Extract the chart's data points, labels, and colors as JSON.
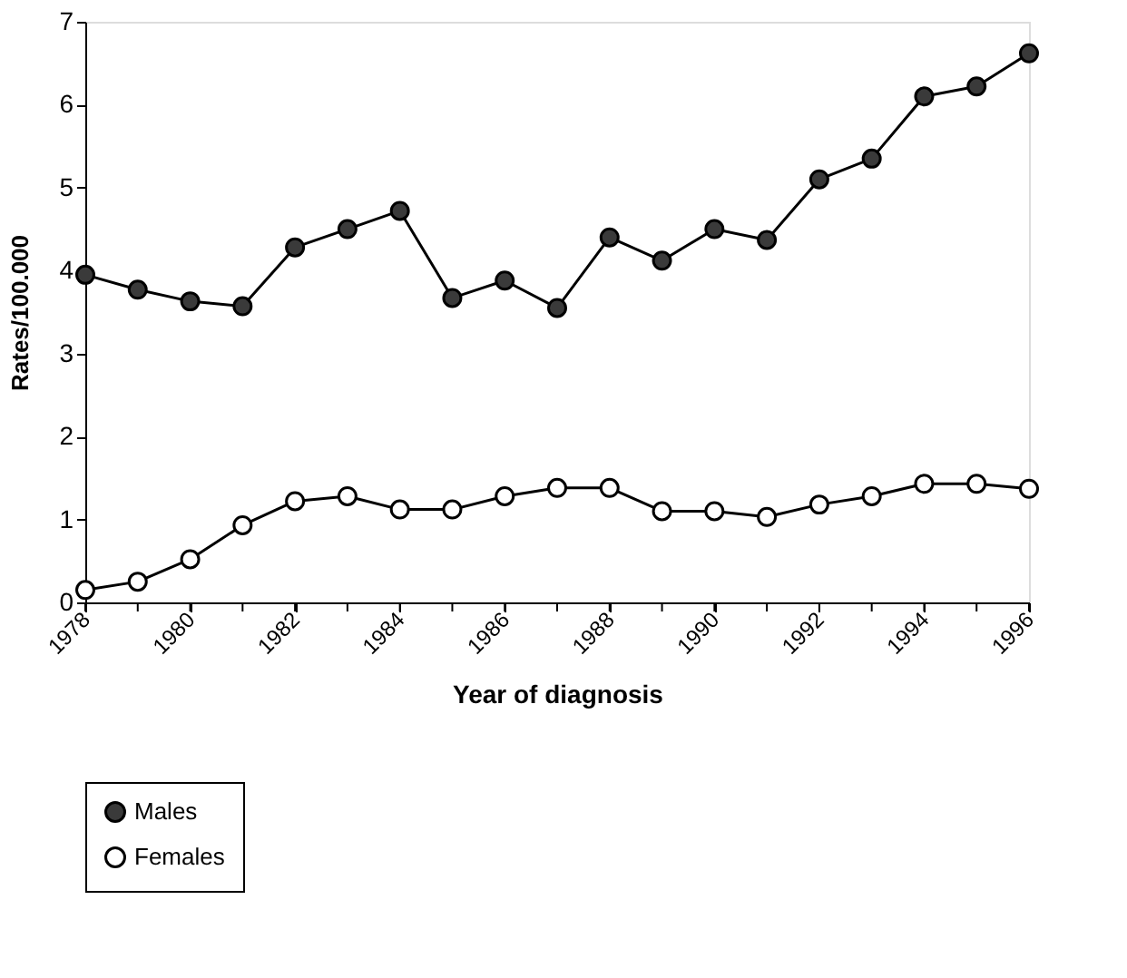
{
  "chart_data": {
    "type": "line",
    "xlabel": "Year of diagnosis",
    "ylabel": "Rates/100.000",
    "x": [
      1978,
      1979,
      1980,
      1981,
      1982,
      1983,
      1984,
      1985,
      1986,
      1987,
      1988,
      1989,
      1990,
      1991,
      1992,
      1993,
      1994,
      1995,
      1996
    ],
    "series": [
      {
        "name": "Males",
        "color": "#3a3a3a",
        "values": [
          3.95,
          3.77,
          3.63,
          3.57,
          4.28,
          4.5,
          4.72,
          3.67,
          3.88,
          3.55,
          4.4,
          4.12,
          4.5,
          4.37,
          5.1,
          5.35,
          6.1,
          6.22,
          6.62
        ]
      },
      {
        "name": "Females",
        "color": "#ffffff",
        "values": [
          0.15,
          0.25,
          0.52,
          0.93,
          1.22,
          1.28,
          1.12,
          1.12,
          1.28,
          1.38,
          1.38,
          1.1,
          1.1,
          1.03,
          1.18,
          1.28,
          1.43,
          1.43,
          1.37
        ]
      }
    ],
    "xlim": [
      1978,
      1996
    ],
    "xticks": [
      1978,
      {
        "value": 1979,
        "label": null
      },
      1980,
      {
        "value": 1981,
        "label": null
      },
      1982,
      {
        "value": 1983,
        "label": null
      },
      1984,
      {
        "value": 1985,
        "label": null
      },
      1986,
      {
        "value": 1987,
        "label": null
      },
      1988,
      {
        "value": 1989,
        "label": null
      },
      1990,
      {
        "value": 1991,
        "label": null
      },
      1992,
      {
        "value": 1993,
        "label": null
      },
      1994,
      {
        "value": 1995,
        "label": null
      },
      1996
    ],
    "ylim": [
      0,
      7
    ],
    "yticks": [
      0,
      1,
      2,
      3,
      4,
      5,
      6,
      7
    ],
    "marker": "circle",
    "line_style": "solid",
    "grid": false,
    "legend": "bottom"
  }
}
